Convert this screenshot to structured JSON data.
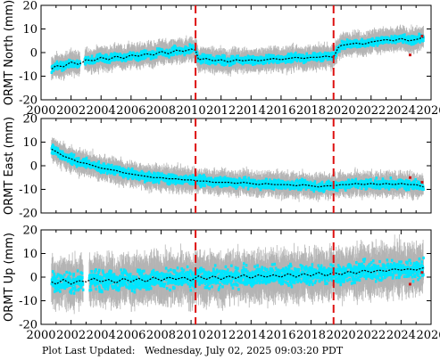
{
  "chart_data": [
    {
      "type": "scatter",
      "ylabel": "ORMT North (mm)",
      "xlim": [
        2000,
        2026
      ],
      "ylim": [
        -20,
        20
      ],
      "x_ticks": [
        2000,
        2002,
        2004,
        2006,
        2008,
        2010,
        2012,
        2014,
        2016,
        2018,
        2020,
        2022,
        2024,
        2026
      ],
      "y_ticks": [
        -20,
        -10,
        0,
        10,
        20
      ],
      "tick_labels_x_shown": true,
      "reference_lines_x": [
        2010.3,
        2019.5
      ],
      "series": [
        {
          "x": [
            2000.7,
            2001.0,
            2001.5,
            2002.0,
            2002.5,
            2002.8,
            2003.0,
            2003.5,
            2004.0,
            2004.5,
            2005.0,
            2005.5,
            2006.0,
            2006.5,
            2007.0,
            2007.5,
            2008.0,
            2008.5,
            2009.0,
            2009.5,
            2010.0,
            2010.3,
            2010.5,
            2011.0,
            2011.5,
            2012.0,
            2012.5,
            2013.0,
            2013.5,
            2014.0,
            2014.5,
            2015.0,
            2015.5,
            2016.0,
            2016.5,
            2017.0,
            2017.5,
            2018.0,
            2018.5,
            2019.0,
            2019.5,
            2019.8,
            2020.0,
            2020.5,
            2021.0,
            2021.5,
            2022.0,
            2022.5,
            2023.0,
            2023.5,
            2024.0,
            2024.5,
            2025.0,
            2025.5
          ],
          "y": [
            -7,
            -5.5,
            -6,
            -4,
            -5,
            -4,
            -3,
            -3.5,
            -2,
            -3,
            -1.5,
            -2.5,
            -1,
            -1.5,
            -0.5,
            -1,
            0.5,
            -0.5,
            1,
            0.5,
            1.5,
            1,
            -3,
            -2.5,
            -3.5,
            -3,
            -4,
            -3,
            -3.5,
            -3,
            -3.5,
            -3,
            -2.5,
            -3,
            -2.5,
            -2,
            -2.5,
            -2,
            -2,
            -1.5,
            -2,
            2,
            3,
            3.5,
            4,
            3.5,
            4.5,
            5,
            5.5,
            5,
            6,
            5,
            5.5,
            6.5
          ]
        }
      ]
    },
    {
      "type": "scatter",
      "ylabel": "ORMT East (mm)",
      "xlim": [
        2000,
        2026
      ],
      "ylim": [
        -20,
        20
      ],
      "x_ticks": [
        2000,
        2002,
        2004,
        2006,
        2008,
        2010,
        2012,
        2014,
        2016,
        2018,
        2020,
        2022,
        2024,
        2026
      ],
      "y_ticks": [
        -20,
        -10,
        0,
        10,
        20
      ],
      "tick_labels_x_shown": false,
      "reference_lines_x": [
        2010.3,
        2019.5
      ],
      "series": [
        {
          "x": [
            2000.7,
            2001.0,
            2001.5,
            2002.0,
            2002.5,
            2003.0,
            2003.5,
            2004.0,
            2004.5,
            2005.0,
            2005.5,
            2006.0,
            2006.5,
            2007.0,
            2007.5,
            2008.0,
            2008.5,
            2009.0,
            2009.5,
            2010.0,
            2010.5,
            2011.0,
            2011.5,
            2012.0,
            2012.5,
            2013.0,
            2013.5,
            2014.0,
            2014.5,
            2015.0,
            2015.5,
            2016.0,
            2016.5,
            2017.0,
            2017.5,
            2018.0,
            2018.5,
            2019.0,
            2019.5,
            2020.0,
            2020.5,
            2021.0,
            2021.5,
            2022.0,
            2022.5,
            2023.0,
            2023.5,
            2024.0,
            2024.5,
            2025.0,
            2025.5
          ],
          "y": [
            7,
            6,
            4,
            3,
            1.5,
            1,
            0,
            -1,
            -1.5,
            -2,
            -3,
            -3.5,
            -4,
            -4.5,
            -5,
            -5,
            -5.5,
            -5.5,
            -6,
            -6,
            -6.5,
            -6.5,
            -7,
            -7,
            -7,
            -7.5,
            -7,
            -7.5,
            -8,
            -7.5,
            -8,
            -8,
            -8,
            -8.5,
            -8,
            -8.5,
            -9,
            -8.5,
            -8.5,
            -8,
            -8,
            -7.5,
            -8,
            -7.5,
            -8,
            -7.5,
            -8,
            -7.5,
            -8,
            -8,
            -9
          ]
        }
      ]
    },
    {
      "type": "scatter",
      "ylabel": "ORMT Up (mm)",
      "xlim": [
        2000,
        2026
      ],
      "ylim": [
        -20,
        20
      ],
      "x_ticks": [
        2000,
        2002,
        2004,
        2006,
        2008,
        2010,
        2012,
        2014,
        2016,
        2018,
        2020,
        2022,
        2024,
        2026
      ],
      "y_ticks": [
        -20,
        -10,
        0,
        10,
        20
      ],
      "tick_labels_x_shown": true,
      "reference_lines_x": [
        2010.3,
        2019.5
      ],
      "series": [
        {
          "x": [
            2000.7,
            2001.0,
            2001.5,
            2002.0,
            2002.5,
            2003.0,
            2003.5,
            2004.0,
            2004.5,
            2005.0,
            2005.5,
            2006.0,
            2006.5,
            2007.0,
            2007.5,
            2008.0,
            2008.5,
            2009.0,
            2009.5,
            2010.0,
            2010.5,
            2011.0,
            2011.5,
            2012.0,
            2012.5,
            2013.0,
            2013.5,
            2014.0,
            2014.5,
            2015.0,
            2015.5,
            2016.0,
            2016.5,
            2017.0,
            2017.5,
            2018.0,
            2018.5,
            2019.0,
            2019.5,
            2020.0,
            2020.5,
            2021.0,
            2021.5,
            2022.0,
            2022.5,
            2023.0,
            2023.5,
            2024.0,
            2024.5,
            2025.0,
            2025.5
          ],
          "y": [
            -2,
            -3,
            -1,
            -3,
            -1.5,
            -2,
            -0.5,
            -2,
            -1,
            -2.5,
            -0.5,
            -2,
            -0.5,
            -2,
            0,
            -1.5,
            0,
            -1,
            0,
            -1.5,
            0.5,
            -1,
            0.5,
            -1,
            0.5,
            -0.5,
            1,
            -0.5,
            1,
            0,
            1,
            0,
            1.5,
            0,
            1.5,
            0.5,
            2,
            0.5,
            2,
            1,
            2.5,
            1.5,
            3,
            2,
            3,
            2.5,
            3.5,
            3,
            3.5,
            3,
            4
          ]
        }
      ]
    }
  ],
  "footer": {
    "label": "Plot Last Updated:",
    "date": "Wednesday, July 02, 2025 09:03:20 PDT"
  },
  "colors": {
    "error_bars": "#b4b4b4",
    "points": "#00e6ff",
    "trend": "#000000",
    "reference_line": "#dd1111",
    "outlier": "#cc1111"
  }
}
